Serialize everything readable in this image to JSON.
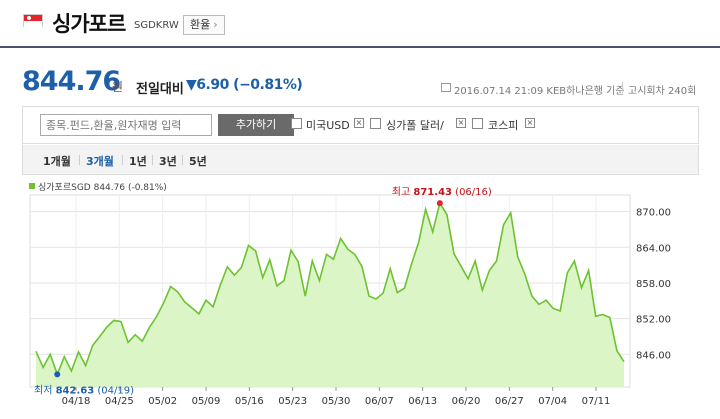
{
  "header": {
    "title": "싱가포르",
    "code": "SGDKRW",
    "exchange_button": "환율",
    "flag_icon": "singapore-flag-icon"
  },
  "price": {
    "value": "844.76",
    "unit": "원",
    "prev_label": "전일대비",
    "change": "▼6.90 (−0.81%)",
    "date_source": "2016.07.14 21:09  KEB하나은행 기준",
    "round": "고시회차 240회",
    "change_color": "#1d5fa8"
  },
  "search": {
    "placeholder": "종목.펀드,환율,원자재명 입력",
    "add_button": "추가하기",
    "checkboxes": [
      "미국USD",
      "싱가폴 달러/",
      "코스피"
    ]
  },
  "tabs": [
    "1개월",
    "3개월",
    "1년",
    "3년",
    "5년"
  ],
  "legend": {
    "label": "싱가포르SGD  844.76 (-0.81%)",
    "color": "#6cc230"
  },
  "chart_data": {
    "type": "area",
    "series": [
      {
        "name": "싱가포르SGD",
        "values": [
          846.5,
          843.8,
          846.0,
          842.63,
          845.6,
          843.2,
          846.4,
          844.1,
          847.5,
          849.0,
          850.6,
          851.7,
          851.5,
          848.0,
          849.3,
          848.2,
          850.5,
          852.3,
          854.6,
          857.4,
          856.5,
          854.8,
          853.8,
          852.8,
          855.1,
          854.0,
          857.6,
          860.7,
          859.3,
          860.6,
          864.3,
          863.4,
          858.9,
          861.9,
          857.5,
          858.4,
          863.5,
          861.6,
          855.8,
          861.7,
          858.4,
          862.8,
          862.0,
          865.5,
          863.7,
          862.8,
          860.8,
          855.8,
          855.3,
          856.3,
          860.4,
          856.4,
          857.1,
          861.2,
          864.8,
          870.4,
          866.6,
          871.43,
          869.5,
          862.9,
          860.8,
          858.7,
          861.7,
          856.8,
          860.1,
          861.7,
          867.8,
          869.8,
          862.4,
          859.5,
          855.8,
          854.4,
          855.1,
          853.7,
          853.3,
          859.7,
          861.7,
          857.2,
          860.1,
          852.4,
          852.7,
          852.2,
          846.6,
          844.76
        ]
      }
    ],
    "x_labels": [
      "04/18",
      "04/25",
      "05/02",
      "05/09",
      "05/16",
      "05/23",
      "05/30",
      "06/07",
      "06/13",
      "06/20",
      "06/27",
      "07/04",
      "07/11"
    ],
    "y_ticks": [
      "846.00",
      "852.00",
      "858.00",
      "864.00",
      "870.00"
    ],
    "ylim": [
      840.5,
      872.8
    ],
    "high": {
      "label": "최고",
      "value": "871.43",
      "date": "(06/16)"
    },
    "low": {
      "label": "최저",
      "value": "842.63",
      "date": "(04/19)"
    },
    "grid": true,
    "line_color": "#6cc230",
    "fill_color": "#dbf5c6"
  }
}
